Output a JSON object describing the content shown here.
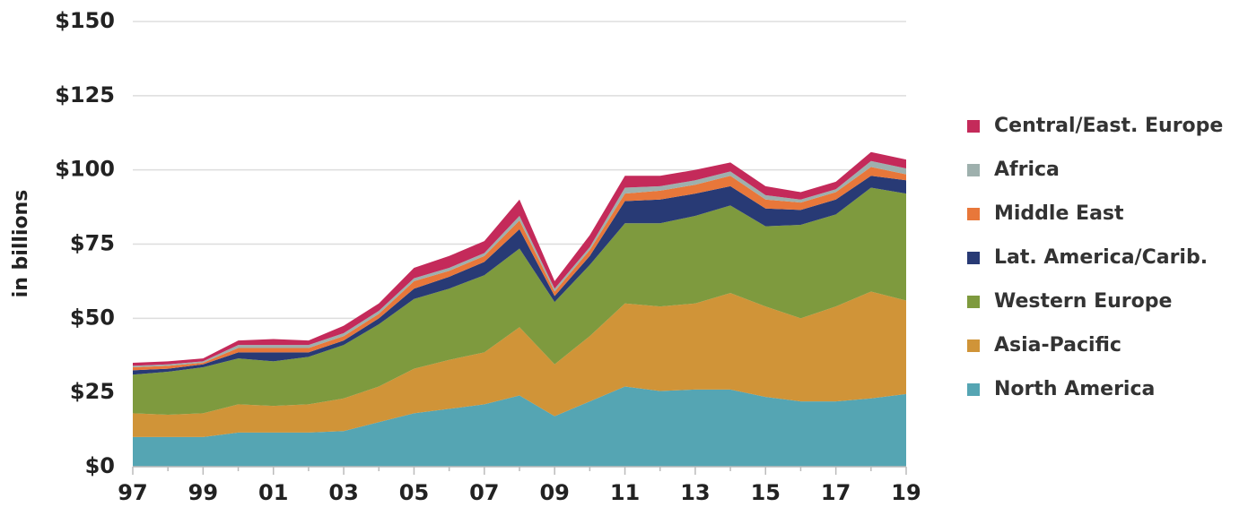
{
  "chart_data": {
    "type": "stacked-area",
    "y_label": "in billions",
    "categories": [
      "97",
      null,
      "99",
      null,
      "01",
      null,
      "03",
      null,
      "05",
      null,
      "07",
      null,
      "09",
      null,
      "11",
      null,
      "13",
      null,
      "15",
      null,
      "17",
      null,
      "19"
    ],
    "ylim": [
      0,
      150
    ],
    "yticks": [
      {
        "value": 0,
        "label": "$0"
      },
      {
        "value": 25,
        "label": "$25"
      },
      {
        "value": 50,
        "label": "$50"
      },
      {
        "value": 75,
        "label": "$75"
      },
      {
        "value": 100,
        "label": "$100"
      },
      {
        "value": 125,
        "label": "$125"
      },
      {
        "value": 150,
        "label": "$150"
      }
    ],
    "grid": true,
    "legend": "right",
    "series": [
      {
        "name": "North America",
        "color": "#55a5b3",
        "values": [
          10,
          10,
          10,
          11.5,
          11.5,
          11.5,
          12,
          15,
          18,
          19.5,
          21,
          24,
          17,
          22,
          27,
          25.5,
          26,
          26,
          23.5,
          22,
          22,
          23,
          24.5
        ]
      },
      {
        "name": "Asia-Pacific",
        "color": "#d09438",
        "values": [
          8,
          7.5,
          8,
          9.5,
          9,
          9.5,
          11,
          12,
          15,
          16.5,
          17.5,
          23,
          17.5,
          22,
          28,
          28.5,
          29,
          32.5,
          30.5,
          28,
          32,
          36,
          31.5
        ]
      },
      {
        "name": "Western Europe",
        "color": "#7e9a3e",
        "values": [
          13,
          14.5,
          15.5,
          15.5,
          15,
          16,
          18,
          21,
          23.5,
          24,
          26,
          26.5,
          21,
          24,
          27,
          28,
          29.5,
          29.5,
          27,
          31.5,
          31,
          35,
          36
        ]
      },
      {
        "name": "Lat. America/Carib.",
        "color": "#283a75",
        "values": [
          1.5,
          1,
          1,
          2,
          3,
          1.5,
          1.5,
          2,
          3.5,
          4,
          4.5,
          6.5,
          2,
          3,
          7.5,
          8,
          7.5,
          6.5,
          6,
          5,
          5,
          4,
          4.5
        ]
      },
      {
        "name": "Middle East",
        "color": "#e8773a",
        "values": [
          1,
          1,
          0.5,
          1.5,
          1.5,
          1.5,
          1.5,
          1.5,
          2.5,
          2,
          2,
          3,
          1.5,
          2,
          2.5,
          3,
          3,
          3.5,
          3,
          2.5,
          2.5,
          3,
          2
        ]
      },
      {
        "name": "Africa",
        "color": "#9eb0ad",
        "values": [
          0.5,
          0.5,
          0.5,
          1,
          1,
          1,
          1,
          1,
          1,
          1,
          1,
          1.5,
          1,
          1,
          2,
          1.5,
          1.5,
          1.5,
          1.5,
          1,
          1,
          2,
          2
        ]
      },
      {
        "name": "Central/East. Europe",
        "color": "#c42a5a",
        "values": [
          1,
          1,
          1,
          1.5,
          2,
          1.5,
          2.5,
          2.5,
          3.5,
          4,
          4,
          5.5,
          2.5,
          4,
          4,
          3.5,
          3.5,
          3,
          3,
          2.5,
          2.5,
          3,
          3
        ]
      }
    ]
  }
}
